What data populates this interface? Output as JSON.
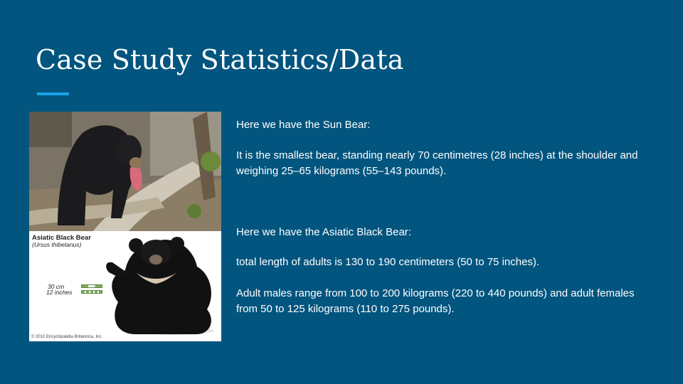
{
  "slide": {
    "title": "Case Study Statistics/Data",
    "paragraphs": [
      "Here we have the Sun Bear:",
      "It is the smallest bear, standing nearly 70 centimetres (28 inches) at the shoulder and weighing 25–65 kilograms (55–143 pounds).",
      "Here we have the Asiatic Black Bear:",
      "total length of adults is 130 to 190 centimeters (50 to 75 inches).",
      "Adult males range from 100 to 200 kilograms (220 to 440 pounds) and adult females from 50 to 125 kilograms (110 to 275 pounds)."
    ]
  },
  "images": {
    "asiatic_caption": {
      "title": "Asiatic Black Bear",
      "scientific_name": "(Ursus thibetanus)",
      "scale_cm": "30 cm",
      "scale_in": "12 inches",
      "copyright": "© 2010 Encyclopædia Britannica, Inc."
    }
  },
  "colors": {
    "background": "#01557f",
    "accent": "#1aa3e8",
    "text": "#ffffff"
  }
}
